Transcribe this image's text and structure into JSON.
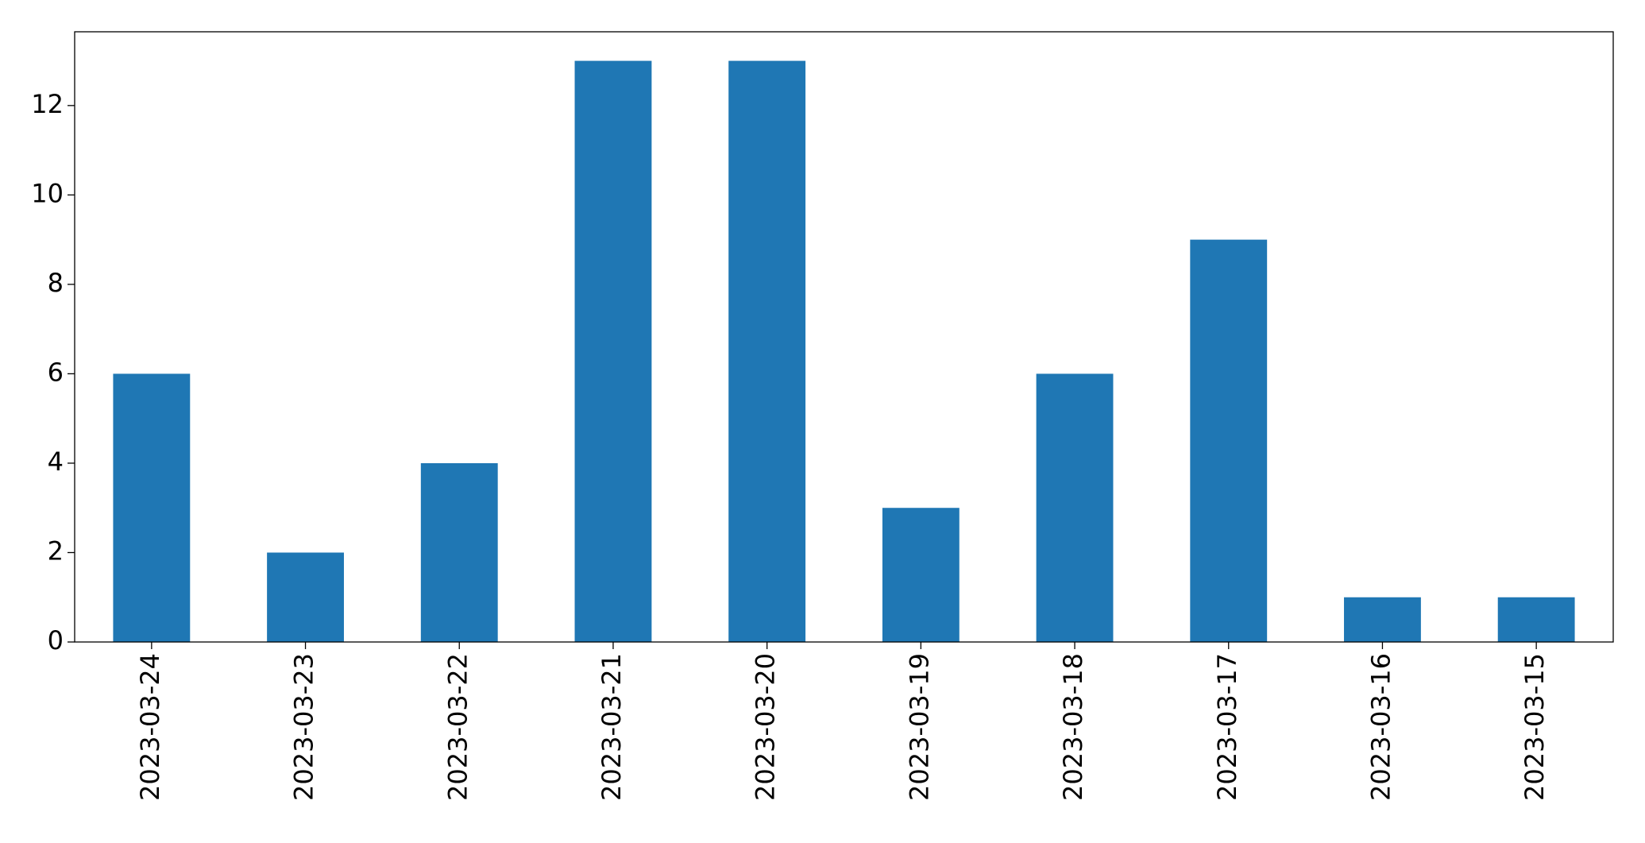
{
  "chart_data": {
    "type": "bar",
    "categories": [
      "2023-03-24",
      "2023-03-23",
      "2023-03-22",
      "2023-03-21",
      "2023-03-20",
      "2023-03-19",
      "2023-03-18",
      "2023-03-17",
      "2023-03-16",
      "2023-03-15"
    ],
    "values": [
      6,
      2,
      4,
      13,
      13,
      3,
      6,
      9,
      1,
      1
    ],
    "color": "#1f77b4",
    "ylim": [
      0,
      13.65
    ],
    "yticks": [
      0,
      2,
      4,
      6,
      8,
      10,
      12
    ],
    "grid": false
  }
}
